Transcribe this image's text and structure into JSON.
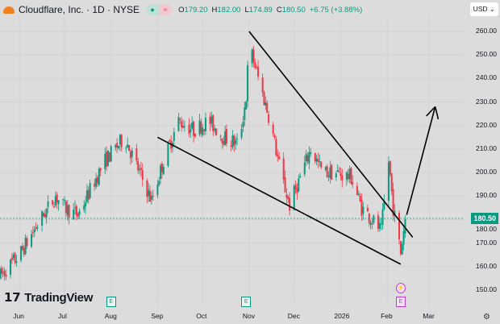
{
  "header": {
    "symbol": "Cloudflare, Inc. · 1D · NYSE",
    "open_label": "O",
    "open": "179.20",
    "high_label": "H",
    "high": "182.00",
    "low_label": "L",
    "low": "174.89",
    "close_label": "C",
    "close": "180.50",
    "change": "+6.75 (+3.88%)"
  },
  "currency": "USD",
  "branding": "TradingView",
  "earnings_marker": "E",
  "colors": {
    "up": "#089981",
    "down": "#f23645",
    "background": "#dcdcdc",
    "future_event": "#c13bd8"
  },
  "chart_data": {
    "type": "candlestick",
    "title": "Cloudflare, Inc. · 1D · NYSE",
    "ylim": [
      145,
      264
    ],
    "y_ticks": [
      "260.00",
      "250.00",
      "240.00",
      "230.00",
      "220.00",
      "210.00",
      "200.00",
      "190.00",
      "180.00",
      "170.00",
      "160.00",
      "150.00"
    ],
    "x_ticks": [
      "Jun",
      "Jul",
      "Aug",
      "Sep",
      "Oct",
      "Nov",
      "Dec",
      "2026",
      "Feb",
      "Mar"
    ],
    "x_range": [
      "2025-05-19",
      "2026-03-24"
    ],
    "last_price": "180.50",
    "approx_price_path": [
      [
        "2025-05-19",
        156
      ],
      [
        "2025-06-01",
        165
      ],
      [
        "2025-06-15",
        180
      ],
      [
        "2025-06-25",
        190
      ],
      [
        "2025-07-01",
        185
      ],
      [
        "2025-07-10",
        182
      ],
      [
        "2025-07-20",
        195
      ],
      [
        "2025-07-28",
        205
      ],
      [
        "2025-08-10",
        215
      ],
      [
        "2025-08-20",
        200
      ],
      [
        "2025-08-28",
        188
      ],
      [
        "2025-09-05",
        205
      ],
      [
        "2025-09-15",
        222
      ],
      [
        "2025-09-25",
        218
      ],
      [
        "2025-10-05",
        222
      ],
      [
        "2025-10-15",
        215
      ],
      [
        "2025-10-25",
        212
      ],
      [
        "2025-10-30",
        232
      ],
      [
        "2025-11-01",
        255
      ],
      [
        "2025-11-08",
        238
      ],
      [
        "2025-11-15",
        222
      ],
      [
        "2025-11-22",
        200
      ],
      [
        "2025-11-28",
        186
      ],
      [
        "2025-12-05",
        198
      ],
      [
        "2025-12-12",
        210
      ],
      [
        "2025-12-20",
        200
      ],
      [
        "2025-12-28",
        200
      ],
      [
        "2026-01-08",
        198
      ],
      [
        "2026-01-15",
        185
      ],
      [
        "2026-01-22",
        180
      ],
      [
        "2026-01-28",
        175
      ],
      [
        "2026-02-02",
        205
      ],
      [
        "2026-02-05",
        185
      ],
      [
        "2026-02-10",
        166
      ],
      [
        "2026-02-13",
        180.5
      ]
    ],
    "annotations": [
      {
        "type": "trendline",
        "from": [
          "2025-11-01",
          260
        ],
        "to": [
          "2026-02-18",
          172.5
        ]
      },
      {
        "type": "trendline",
        "from": [
          "2025-09-01",
          215
        ],
        "to": [
          "2026-02-10",
          161
        ]
      },
      {
        "type": "arrow",
        "from": [
          "2026-02-14",
          182
        ],
        "to": [
          "2026-03-05",
          228
        ]
      }
    ],
    "events": [
      {
        "type": "earnings",
        "date": "2025-08-01"
      },
      {
        "type": "earnings",
        "date": "2025-10-30"
      },
      {
        "type": "earnings",
        "date": "2026-02-10",
        "future": true
      },
      {
        "type": "dividend-split",
        "date": "2026-02-10"
      }
    ]
  }
}
